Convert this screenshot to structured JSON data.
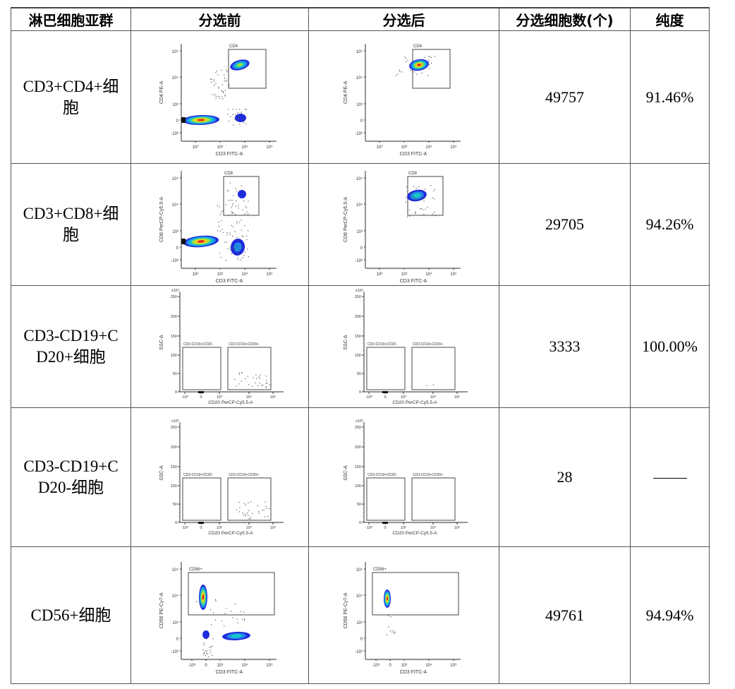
{
  "table": {
    "headers": [
      "淋巴细胞亚群",
      "分选前",
      "分选后",
      "分选细胞数(个)",
      "纯度"
    ],
    "rows": [
      {
        "subset": "CD3+CD4+细胞",
        "subset_lines": [
          "CD3+CD4+细",
          "胞"
        ],
        "count": "49757",
        "purity": "91.46%",
        "before_plot": {
          "x_label": "CD3 FITC-A",
          "y_label": "CD4 PE-A",
          "gate": "CD4"
        },
        "after_plot": {
          "x_label": "CD3 FITC-A",
          "y_label": "CD4 PE-A",
          "gate": "CD4"
        }
      },
      {
        "subset": "CD3+CD8+细胞",
        "subset_lines": [
          "CD3+CD8+细",
          "胞"
        ],
        "count": "29705",
        "purity": "94.26%",
        "before_plot": {
          "x_label": "CD3 FITC-A",
          "y_label": "CD8 PerCP-Cy5.5-A",
          "gate": "CD8"
        },
        "after_plot": {
          "x_label": "CD3 FITC-A",
          "y_label": "CD8 PerCP-Cy5.5-A",
          "gate": "CD8"
        }
      },
      {
        "subset": "CD3-CD19+CD20+细胞",
        "subset_lines": [
          "CD3-CD19+C",
          "D20+细胞"
        ],
        "count": "3333",
        "purity": "100.00%",
        "before_plot": {
          "x_label": "CD20 PerCP-Cy5.5-A",
          "y_label": "SSC-A",
          "gate_left": "CD3-CD19+CD20-",
          "gate_right": "CD3-CD19+CD20+"
        },
        "after_plot": {
          "x_label": "CD20 PerCP-Cy5.5-A",
          "y_label": "SSC-A",
          "gate_left": "CD3-CD19+CD20-",
          "gate_right": "CD3-CD19+CD20+"
        }
      },
      {
        "subset": "CD3-CD19+CD20-细胞",
        "subset_lines": [
          "CD3-CD19+C",
          "D20-细胞"
        ],
        "count": "28",
        "purity": "——",
        "before_plot": {
          "x_label": "CD20 PerCP-Cy5.5-A",
          "y_label": "SSC-A",
          "gate_left": "CD3-CD19+CD20-",
          "gate_right": "CD3-CD19+CD20+"
        },
        "after_plot": {
          "x_label": "CD20 PerCP-Cy5.5-A",
          "y_label": "SSC-A",
          "gate_left": "CD3-CD19+CD20-",
          "gate_right": "CD3-CD19+CD20+"
        }
      },
      {
        "subset": "CD56+细胞",
        "subset_lines": [
          "CD56+细胞"
        ],
        "count": "49761",
        "purity": "94.94%",
        "before_plot": {
          "x_label": "CD3 FITC-A",
          "y_label": "CD56 PE-Cy7-A",
          "gate": "CD56+"
        },
        "after_plot": {
          "x_label": "CD3 FITC-A",
          "y_label": "CD56 PE-Cy7-A",
          "gate": "CD56+"
        }
      }
    ]
  },
  "axis_ticks": {
    "log_y": [
      "10⁵",
      "10⁴",
      "10³",
      "0",
      "-10³"
    ],
    "log_x": [
      "10²",
      "10³",
      "10⁴",
      "10⁵"
    ],
    "biexp_x": [
      "-10³",
      "0",
      "10³",
      "10⁴",
      "10⁵"
    ],
    "ssc_y": [
      "250",
      "200",
      "150",
      "100",
      "50",
      "0"
    ],
    "ssc_scale": "x10³"
  },
  "colors": {
    "border": "#555555",
    "density_low": "#1f2bdc",
    "density_mid": "#19c8c8",
    "density_high": "#e02020",
    "gate": "#444444"
  }
}
